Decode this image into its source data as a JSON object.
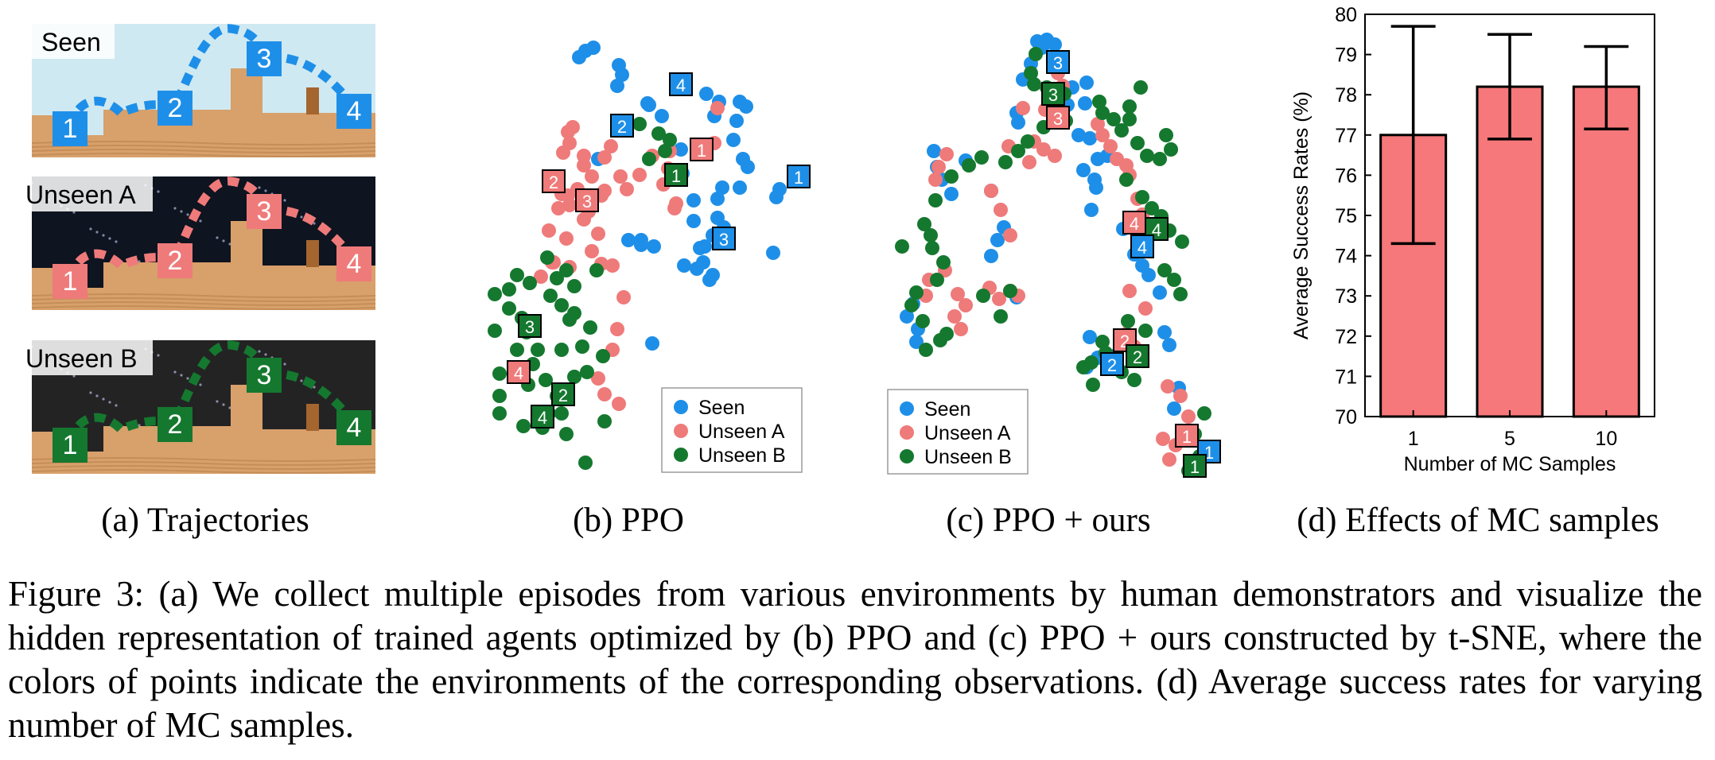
{
  "panel_a": {
    "rows": [
      {
        "label": "Seen",
        "color": "#1e8fe8",
        "sky": "#cfe9f2",
        "markers": [
          "1",
          "2",
          "3",
          "4"
        ]
      },
      {
        "label": "Unseen A",
        "color": "#ef7a7a",
        "sky": "#0e1420",
        "markers": [
          "1",
          "2",
          "3",
          "4"
        ]
      },
      {
        "label": "Unseen B",
        "color": "#15782f",
        "sky": "#232324",
        "markers": [
          "1",
          "2",
          "3",
          "4"
        ]
      }
    ],
    "caption": "(a)  Trajectories"
  },
  "panel_b": {
    "caption": "(b)  PPO",
    "legend": [
      "Seen",
      "Unseen A",
      "Unseen B"
    ],
    "markers": [
      {
        "env": "seen",
        "text": "4"
      },
      {
        "env": "seen",
        "text": "2"
      },
      {
        "env": "seen",
        "text": "1"
      },
      {
        "env": "seen",
        "text": "3"
      },
      {
        "env": "a",
        "text": "1"
      },
      {
        "env": "a",
        "text": "2"
      },
      {
        "env": "a",
        "text": "3"
      },
      {
        "env": "a",
        "text": "4"
      },
      {
        "env": "b",
        "text": "1"
      },
      {
        "env": "b",
        "text": "3"
      },
      {
        "env": "b",
        "text": "2"
      },
      {
        "env": "b",
        "text": "4"
      }
    ]
  },
  "panel_c": {
    "caption": "(c)  PPO + ours",
    "legend": [
      "Seen",
      "Unseen A",
      "Unseen B"
    ],
    "markers": [
      {
        "env": "seen",
        "text": "3"
      },
      {
        "env": "b",
        "text": "3"
      },
      {
        "env": "a",
        "text": "3"
      },
      {
        "env": "a",
        "text": "4"
      },
      {
        "env": "b",
        "text": "4"
      },
      {
        "env": "seen",
        "text": "4"
      },
      {
        "env": "a",
        "text": "2"
      },
      {
        "env": "b",
        "text": "2"
      },
      {
        "env": "seen",
        "text": "2"
      },
      {
        "env": "a",
        "text": "1"
      },
      {
        "env": "seen",
        "text": "1"
      },
      {
        "env": "b",
        "text": "1"
      }
    ]
  },
  "colors": {
    "seen": "#1e8fe8",
    "a": "#ef7a7a",
    "b": "#15782f",
    "bar": "#f6787a"
  },
  "chart_data": {
    "type": "bar",
    "categories": [
      "1",
      "5",
      "10"
    ],
    "values": [
      77.0,
      78.2,
      78.2
    ],
    "error_low": [
      74.3,
      76.9,
      77.15
    ],
    "error_high": [
      79.7,
      79.5,
      79.2
    ],
    "xlabel": "Number of MC Samples",
    "ylabel": "Average Success Rates (%)",
    "ylim": [
      70,
      80
    ],
    "yticks": [
      "70",
      "71",
      "72",
      "73",
      "74",
      "75",
      "76",
      "77",
      "78",
      "79",
      "80"
    ],
    "caption": "(d)  Effects of MC samples"
  },
  "caption": {
    "text": "Figure 3: (a) We collect multiple episodes from various environments by human demonstrators and visualize the hidden representation of trained agents optimized by (b) PPO and (c) PPO + ours constructed by t-SNE, where the colors of points indicate the environments of the corresponding observations. (d) Average success rates for varying number of MC samples."
  }
}
